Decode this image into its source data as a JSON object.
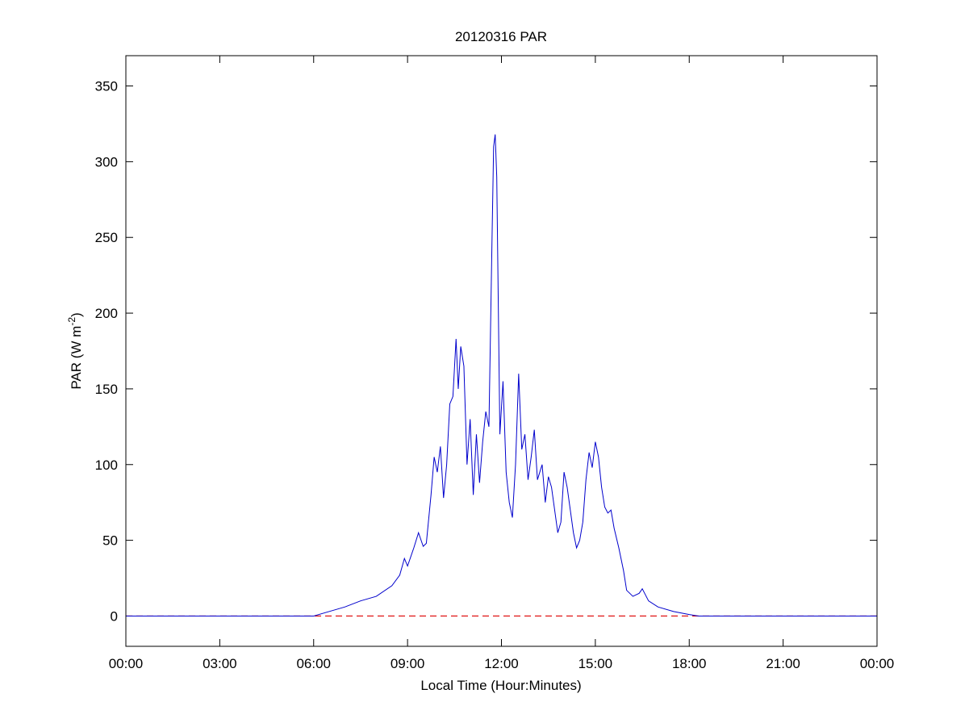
{
  "chart_data": {
    "type": "line",
    "title": "20120316 PAR",
    "xlabel": "Local Time (Hour:Minutes)",
    "ylabel": [
      "PAR (W m",
      "-2",
      ")"
    ],
    "x": [
      0,
      6.0,
      6.5,
      7.0,
      7.5,
      8.0,
      8.5,
      8.75,
      8.9,
      9.0,
      9.2,
      9.35,
      9.5,
      9.6,
      9.75,
      9.85,
      9.95,
      10.05,
      10.15,
      10.25,
      10.35,
      10.45,
      10.55,
      10.62,
      10.7,
      10.8,
      10.9,
      11.0,
      11.1,
      11.2,
      11.3,
      11.4,
      11.5,
      11.6,
      11.7,
      11.75,
      11.8,
      11.85,
      11.95,
      12.05,
      12.15,
      12.25,
      12.35,
      12.45,
      12.55,
      12.65,
      12.75,
      12.85,
      12.95,
      13.05,
      13.15,
      13.3,
      13.4,
      13.5,
      13.6,
      13.7,
      13.8,
      13.9,
      14.0,
      14.1,
      14.2,
      14.3,
      14.4,
      14.5,
      14.6,
      14.7,
      14.8,
      14.9,
      15.0,
      15.1,
      15.2,
      15.3,
      15.4,
      15.5,
      15.6,
      15.75,
      15.9,
      16.0,
      16.2,
      16.4,
      16.5,
      16.7,
      17.0,
      17.5,
      18.0,
      18.3,
      24
    ],
    "series": [
      {
        "color": "#0000cc",
        "values": [
          0,
          0,
          3,
          6,
          10,
          13,
          20,
          27,
          38,
          33,
          45,
          55,
          46,
          48,
          80,
          105,
          95,
          112,
          78,
          100,
          140,
          145,
          183,
          150,
          178,
          165,
          100,
          130,
          80,
          120,
          88,
          115,
          135,
          125,
          250,
          310,
          318,
          290,
          120,
          155,
          95,
          75,
          65,
          100,
          160,
          110,
          120,
          90,
          105,
          123,
          90,
          100,
          75,
          92,
          85,
          70,
          55,
          62,
          95,
          85,
          70,
          55,
          45,
          50,
          62,
          90,
          108,
          98,
          115,
          105,
          85,
          72,
          68,
          70,
          58,
          45,
          30,
          17,
          13,
          15,
          18,
          10,
          6,
          3,
          1,
          0,
          0
        ]
      }
    ],
    "reference_line": {
      "value": 0,
      "color": "#dd0000",
      "style": "dashed"
    },
    "xlim": [
      0,
      24
    ],
    "xticks": [
      {
        "value": 0,
        "label": "00:00"
      },
      {
        "value": 3,
        "label": "03:00"
      },
      {
        "value": 6,
        "label": "06:00"
      },
      {
        "value": 9,
        "label": "09:00"
      },
      {
        "value": 12,
        "label": "12:00"
      },
      {
        "value": 15,
        "label": "15:00"
      },
      {
        "value": 18,
        "label": "18:00"
      },
      {
        "value": 21,
        "label": "21:00"
      },
      {
        "value": 24,
        "label": "00:00"
      }
    ],
    "ylim": [
      -20,
      370
    ],
    "yticks": [
      0,
      50,
      100,
      150,
      200,
      250,
      300,
      350
    ],
    "grid": false
  }
}
